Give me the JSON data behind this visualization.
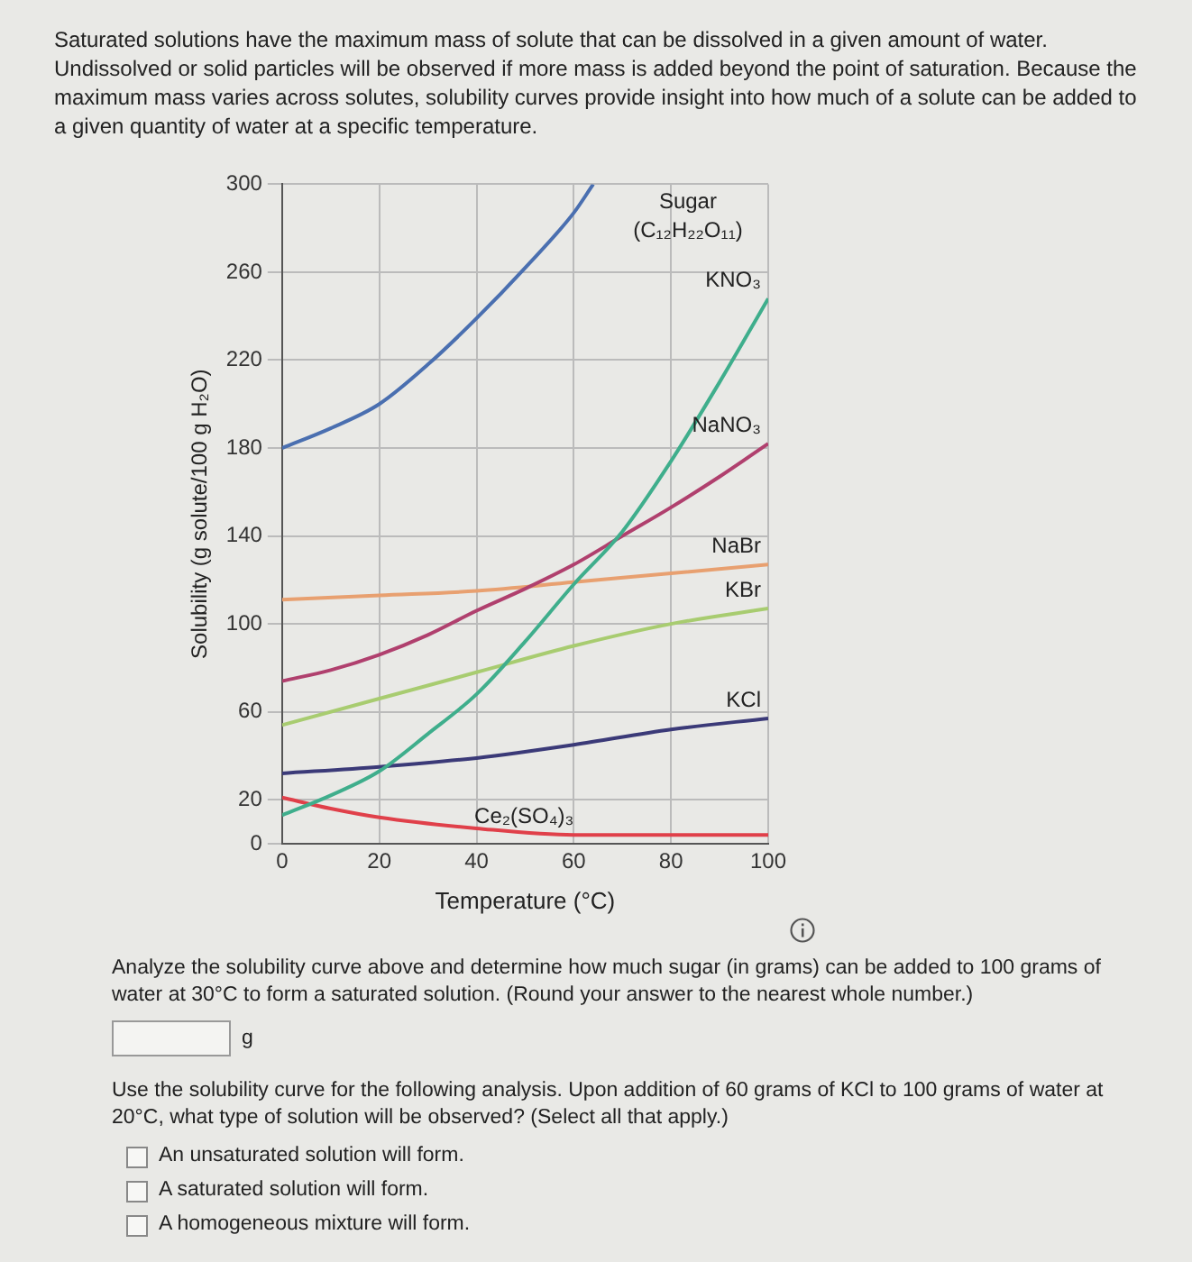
{
  "chart_data": {
    "type": "line",
    "title": "Saturated solutions have the maximum mass of solute that can be dissolved in a given amount of water. Undissolved or solid particles will be observed if more mass is added beyond the point of saturation. Because the maximum mass varies across solutes, solubility curves provide insight into how much of a solute can be added to a given quantity of water at a specific temperature.",
    "xlabel": "Temperature (°C)",
    "ylabel": "Solubility (g solute/100 g H₂O)",
    "xlim": [
      0,
      100
    ],
    "xticks": [
      0,
      20,
      40,
      60,
      80,
      100
    ],
    "ylim": [
      0,
      300
    ],
    "yticks": [
      0,
      20,
      60,
      100,
      140,
      180,
      220,
      260,
      300
    ],
    "grid": true,
    "legend": false,
    "marker": "none",
    "line_style": "solid",
    "series": [
      {
        "name": "Sugar (C₁₂H₂₂O₁₁)",
        "color": "#4a6fb0",
        "x": [
          0,
          10,
          20,
          30,
          40,
          50,
          60,
          64
        ],
        "values": [
          180,
          189,
          200,
          218,
          239,
          262,
          287,
          300
        ]
      },
      {
        "name": "KNO₃",
        "color": "#3fae8c",
        "x": [
          0,
          10,
          20,
          30,
          40,
          50,
          60,
          70,
          80,
          90,
          100
        ],
        "values": [
          13,
          22,
          33,
          50,
          68,
          92,
          118,
          142,
          174,
          210,
          248
        ]
      },
      {
        "name": "NaNO₃",
        "color": "#b0406e",
        "x": [
          0,
          10,
          20,
          30,
          40,
          50,
          60,
          70,
          80,
          90,
          100
        ],
        "values": [
          74,
          79,
          86,
          95,
          106,
          116,
          127,
          140,
          153,
          167,
          182
        ]
      },
      {
        "name": "NaBr",
        "color": "#e8a070",
        "x": [
          0,
          20,
          40,
          60,
          80,
          100
        ],
        "values": [
          111,
          113,
          115,
          119,
          123,
          127
        ]
      },
      {
        "name": "KBr",
        "color": "#a8cc70",
        "x": [
          0,
          20,
          40,
          60,
          80,
          100
        ],
        "values": [
          54,
          66,
          78,
          90,
          100,
          107
        ]
      },
      {
        "name": "KCl",
        "color": "#3b3a78",
        "x": [
          0,
          20,
          40,
          60,
          80,
          100
        ],
        "values": [
          32,
          35,
          39,
          45,
          52,
          57
        ]
      },
      {
        "name": "Ce₂(SO₄)₃",
        "color": "#e0404a",
        "x": [
          0,
          10,
          20,
          40,
          60,
          80,
          100
        ],
        "values": [
          21,
          16,
          12,
          7,
          4,
          4,
          4
        ]
      }
    ],
    "annotations": [
      "Analyze the solubility curve above and determine how much sugar (in grams) can be added to 100 grams of water at 30°C to form a saturated solution. (Round your answer to the nearest whole number.)",
      "g",
      "Use the solubility curve for the following analysis. Upon addition of 60 grams of KCl to 100 grams of water at 20°C, what type of solution will be observed? (Select all that apply.)",
      "An unsaturated solution will form.",
      "A saturated solution will form.",
      "A homogeneous mixture will form."
    ]
  }
}
